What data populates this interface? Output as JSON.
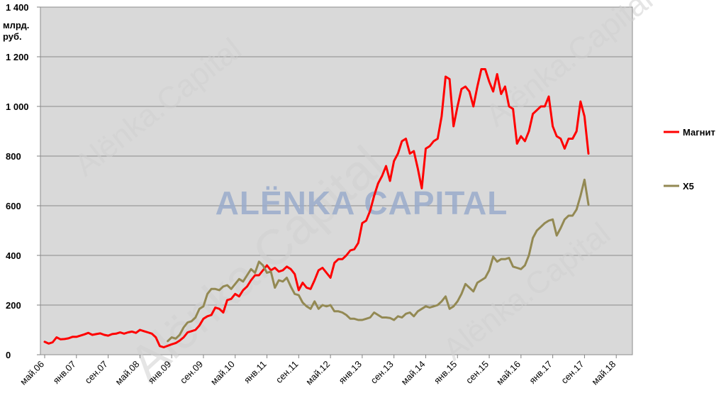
{
  "chart_data": {
    "type": "line",
    "ylabel_lines": [
      "млрд.",
      "руб."
    ],
    "ylim": [
      0,
      1400
    ],
    "yticks": [
      0,
      200,
      400,
      600,
      800,
      1000,
      1200,
      1400
    ],
    "ytick_labels": [
      "0",
      "200",
      "400",
      "600",
      "800",
      "1 000",
      "1 200",
      "1 400"
    ],
    "xlim": [
      0,
      147
    ],
    "xticks": [
      {
        "m": 0,
        "label": "май.06"
      },
      {
        "m": 8,
        "label": "янв.07"
      },
      {
        "m": 16,
        "label": "сен.07"
      },
      {
        "m": 24,
        "label": "май.08"
      },
      {
        "m": 32,
        "label": "янв.09"
      },
      {
        "m": 40,
        "label": "сен.09"
      },
      {
        "m": 48,
        "label": "май.10"
      },
      {
        "m": 56,
        "label": "янв.11"
      },
      {
        "m": 64,
        "label": "сен.11"
      },
      {
        "m": 72,
        "label": "май.12"
      },
      {
        "m": 80,
        "label": "янв.13"
      },
      {
        "m": 88,
        "label": "сен.13"
      },
      {
        "m": 96,
        "label": "май.14"
      },
      {
        "m": 104,
        "label": "янв.15"
      },
      {
        "m": 112,
        "label": "сен.15"
      },
      {
        "m": 120,
        "label": "май.16"
      },
      {
        "m": 128,
        "label": "янв.17"
      },
      {
        "m": 136,
        "label": "сен.17"
      },
      {
        "m": 144,
        "label": "май.18"
      }
    ],
    "grid": true,
    "legend_position": "right",
    "series": [
      {
        "name": "Магнит",
        "color": "#ff0000",
        "points": [
          [
            0,
            52
          ],
          [
            1,
            45
          ],
          [
            2,
            50
          ],
          [
            3,
            70
          ],
          [
            4,
            62
          ],
          [
            5,
            63
          ],
          [
            6,
            66
          ],
          [
            7,
            72
          ],
          [
            8,
            72
          ],
          [
            9,
            77
          ],
          [
            10,
            82
          ],
          [
            11,
            88
          ],
          [
            12,
            80
          ],
          [
            13,
            83
          ],
          [
            14,
            86
          ],
          [
            15,
            80
          ],
          [
            16,
            77
          ],
          [
            17,
            83
          ],
          [
            18,
            85
          ],
          [
            19,
            90
          ],
          [
            20,
            85
          ],
          [
            21,
            90
          ],
          [
            22,
            93
          ],
          [
            23,
            88
          ],
          [
            24,
            100
          ],
          [
            25,
            95
          ],
          [
            26,
            90
          ],
          [
            27,
            85
          ],
          [
            28,
            70
          ],
          [
            29,
            35
          ],
          [
            30,
            30
          ],
          [
            31,
            36
          ],
          [
            32,
            42
          ],
          [
            33,
            47
          ],
          [
            34,
            57
          ],
          [
            35,
            70
          ],
          [
            36,
            90
          ],
          [
            37,
            95
          ],
          [
            38,
            100
          ],
          [
            39,
            118
          ],
          [
            40,
            145
          ],
          [
            41,
            155
          ],
          [
            42,
            160
          ],
          [
            43,
            190
          ],
          [
            44,
            185
          ],
          [
            45,
            170
          ],
          [
            46,
            220
          ],
          [
            47,
            225
          ],
          [
            48,
            245
          ],
          [
            49,
            235
          ],
          [
            50,
            260
          ],
          [
            51,
            275
          ],
          [
            52,
            300
          ],
          [
            53,
            320
          ],
          [
            54,
            320
          ],
          [
            55,
            340
          ],
          [
            56,
            360
          ],
          [
            57,
            340
          ],
          [
            58,
            350
          ],
          [
            59,
            335
          ],
          [
            60,
            340
          ],
          [
            61,
            355
          ],
          [
            62,
            345
          ],
          [
            63,
            325
          ],
          [
            64,
            260
          ],
          [
            65,
            290
          ],
          [
            66,
            270
          ],
          [
            67,
            265
          ],
          [
            68,
            300
          ],
          [
            69,
            340
          ],
          [
            70,
            350
          ],
          [
            71,
            330
          ],
          [
            72,
            310
          ],
          [
            73,
            370
          ],
          [
            74,
            385
          ],
          [
            75,
            385
          ],
          [
            76,
            400
          ],
          [
            77,
            420
          ],
          [
            78,
            425
          ],
          [
            79,
            450
          ],
          [
            80,
            530
          ],
          [
            81,
            540
          ],
          [
            82,
            580
          ],
          [
            83,
            640
          ],
          [
            84,
            690
          ],
          [
            85,
            720
          ],
          [
            86,
            760
          ],
          [
            87,
            700
          ],
          [
            88,
            780
          ],
          [
            89,
            810
          ],
          [
            90,
            860
          ],
          [
            91,
            870
          ],
          [
            92,
            810
          ],
          [
            93,
            820
          ],
          [
            94,
            750
          ],
          [
            95,
            670
          ],
          [
            96,
            830
          ],
          [
            97,
            840
          ],
          [
            98,
            860
          ],
          [
            99,
            870
          ],
          [
            100,
            960
          ],
          [
            101,
            1120
          ],
          [
            102,
            1110
          ],
          [
            103,
            920
          ],
          [
            104,
            1000
          ],
          [
            105,
            1070
          ],
          [
            106,
            1080
          ],
          [
            107,
            1060
          ],
          [
            108,
            1000
          ],
          [
            109,
            1080
          ],
          [
            110,
            1150
          ],
          [
            111,
            1150
          ],
          [
            112,
            1100
          ],
          [
            113,
            1060
          ],
          [
            114,
            1130
          ],
          [
            115,
            1050
          ],
          [
            116,
            1080
          ],
          [
            117,
            1000
          ],
          [
            118,
            990
          ],
          [
            119,
            850
          ],
          [
            120,
            880
          ],
          [
            121,
            860
          ],
          [
            122,
            900
          ],
          [
            123,
            970
          ],
          [
            124,
            985
          ],
          [
            125,
            1000
          ],
          [
            126,
            1000
          ],
          [
            127,
            1040
          ],
          [
            128,
            920
          ],
          [
            129,
            880
          ],
          [
            130,
            870
          ],
          [
            131,
            830
          ],
          [
            132,
            870
          ],
          [
            133,
            870
          ],
          [
            134,
            900
          ],
          [
            135,
            1020
          ],
          [
            136,
            960
          ],
          [
            137,
            810
          ]
        ]
      },
      {
        "name": "X5",
        "color": "#938953",
        "points": [
          [
            31,
            55
          ],
          [
            32,
            70
          ],
          [
            33,
            65
          ],
          [
            34,
            80
          ],
          [
            35,
            110
          ],
          [
            36,
            130
          ],
          [
            37,
            135
          ],
          [
            38,
            150
          ],
          [
            39,
            185
          ],
          [
            40,
            195
          ],
          [
            41,
            245
          ],
          [
            42,
            265
          ],
          [
            43,
            265
          ],
          [
            44,
            260
          ],
          [
            45,
            275
          ],
          [
            46,
            280
          ],
          [
            47,
            265
          ],
          [
            48,
            285
          ],
          [
            49,
            305
          ],
          [
            50,
            295
          ],
          [
            51,
            320
          ],
          [
            52,
            345
          ],
          [
            53,
            330
          ],
          [
            54,
            375
          ],
          [
            55,
            360
          ],
          [
            56,
            330
          ],
          [
            57,
            335
          ],
          [
            58,
            270
          ],
          [
            59,
            300
          ],
          [
            60,
            295
          ],
          [
            61,
            310
          ],
          [
            62,
            275
          ],
          [
            63,
            245
          ],
          [
            64,
            240
          ],
          [
            65,
            210
          ],
          [
            66,
            195
          ],
          [
            67,
            185
          ],
          [
            68,
            215
          ],
          [
            69,
            185
          ],
          [
            70,
            200
          ],
          [
            71,
            195
          ],
          [
            72,
            200
          ],
          [
            73,
            175
          ],
          [
            74,
            175
          ],
          [
            75,
            170
          ],
          [
            76,
            160
          ],
          [
            77,
            145
          ],
          [
            78,
            145
          ],
          [
            79,
            140
          ],
          [
            80,
            140
          ],
          [
            81,
            145
          ],
          [
            82,
            150
          ],
          [
            83,
            170
          ],
          [
            84,
            160
          ],
          [
            85,
            150
          ],
          [
            86,
            150
          ],
          [
            87,
            148
          ],
          [
            88,
            140
          ],
          [
            89,
            155
          ],
          [
            90,
            150
          ],
          [
            91,
            165
          ],
          [
            92,
            170
          ],
          [
            93,
            155
          ],
          [
            94,
            175
          ],
          [
            95,
            185
          ],
          [
            96,
            195
          ],
          [
            97,
            190
          ],
          [
            98,
            195
          ],
          [
            99,
            200
          ],
          [
            100,
            215
          ],
          [
            101,
            235
          ],
          [
            102,
            185
          ],
          [
            103,
            195
          ],
          [
            104,
            215
          ],
          [
            105,
            245
          ],
          [
            106,
            285
          ],
          [
            107,
            270
          ],
          [
            108,
            255
          ],
          [
            109,
            290
          ],
          [
            110,
            300
          ],
          [
            111,
            310
          ],
          [
            112,
            340
          ],
          [
            113,
            395
          ],
          [
            114,
            375
          ],
          [
            115,
            385
          ],
          [
            116,
            385
          ],
          [
            117,
            390
          ],
          [
            118,
            355
          ],
          [
            119,
            350
          ],
          [
            120,
            345
          ],
          [
            121,
            360
          ],
          [
            122,
            400
          ],
          [
            123,
            470
          ],
          [
            124,
            500
          ],
          [
            125,
            515
          ],
          [
            126,
            530
          ],
          [
            127,
            540
          ],
          [
            128,
            545
          ],
          [
            129,
            480
          ],
          [
            130,
            510
          ],
          [
            131,
            545
          ],
          [
            132,
            560
          ],
          [
            133,
            560
          ],
          [
            134,
            585
          ],
          [
            135,
            640
          ],
          [
            136,
            705
          ],
          [
            137,
            605
          ]
        ]
      }
    ]
  },
  "watermark": {
    "center_text": "ALËNKA CAPITAL",
    "diagonal_text": "Alënka.Capital"
  }
}
